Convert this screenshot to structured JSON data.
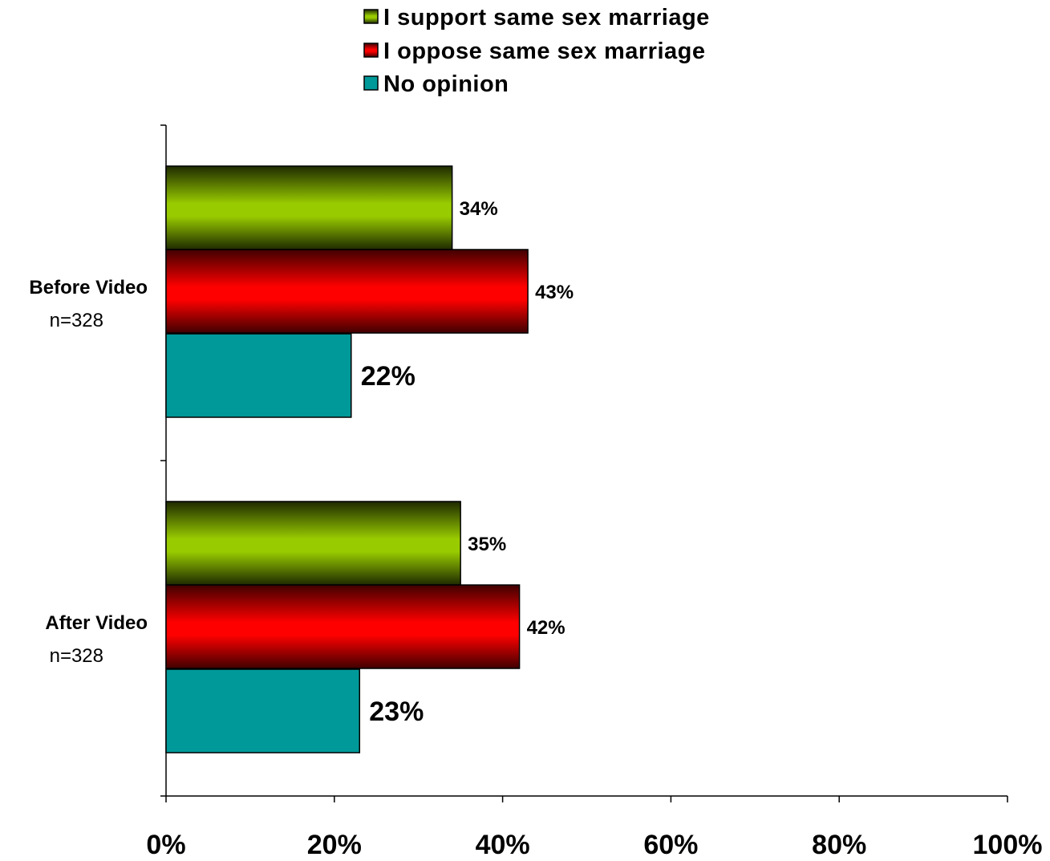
{
  "chart_data": {
    "type": "bar",
    "orientation": "horizontal",
    "title": "",
    "xlabel": "",
    "ylabel": "",
    "xlim": [
      0,
      100
    ],
    "x_ticks": [
      "0%",
      "20%",
      "40%",
      "60%",
      "80%",
      "100%"
    ],
    "x_tick_values": [
      0,
      20,
      40,
      60,
      80,
      100
    ],
    "grid": false,
    "legend_position": "top-center",
    "categories": [
      {
        "label": "Before Video",
        "sublabel": "n=328"
      },
      {
        "label": "After Video",
        "sublabel": "n=328"
      }
    ],
    "series": [
      {
        "name": "I support same sex marriage",
        "color": "#99cc00",
        "values": [
          34,
          35
        ],
        "labels": [
          "34%",
          "35%"
        ]
      },
      {
        "name": "I oppose same sex marriage",
        "color": "#ff0000",
        "values": [
          43,
          42
        ],
        "labels": [
          "43%",
          "42%"
        ]
      },
      {
        "name": "No opinion",
        "color": "#009999",
        "values": [
          22,
          23
        ],
        "labels": [
          "22%",
          "23%"
        ]
      }
    ]
  }
}
